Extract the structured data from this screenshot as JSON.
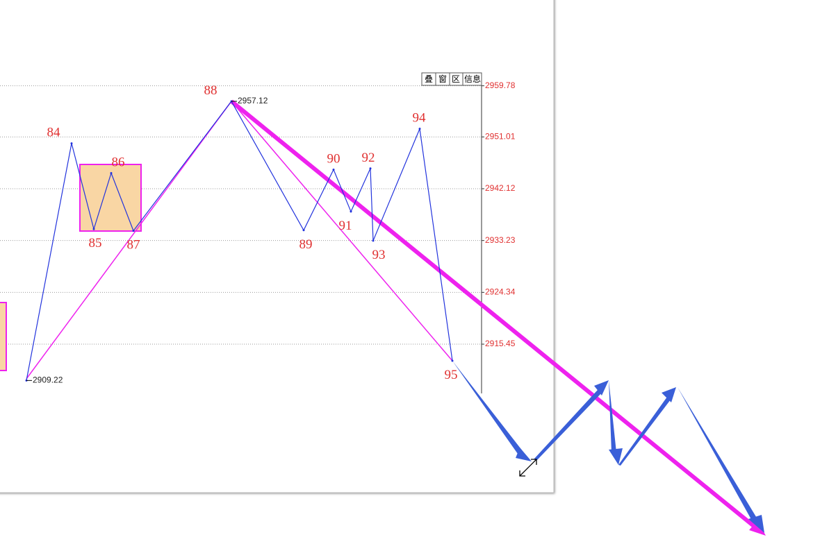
{
  "toolbar": [
    "叠",
    "窗",
    "区",
    "信息"
  ],
  "chart_data": {
    "type": "line",
    "categories": [
      null,
      "84",
      "85",
      "86",
      "87",
      "88",
      "89",
      "90",
      "91",
      "92",
      "93",
      "94",
      "95"
    ],
    "series": [
      {
        "color": "#2233dd",
        "values": [
          2909.22,
          2949.9,
          2935.2,
          2944.8,
          2934.9,
          2957.12,
          2935.0,
          2945.4,
          2938.2,
          2945.6,
          2933.2,
          2952.4,
          2912.6
        ],
        "value_labels": [
          "2909.22",
          null,
          null,
          null,
          null,
          "2957.12",
          null,
          null,
          null,
          null,
          null,
          null,
          null
        ]
      }
    ],
    "ylim": [
      2907,
      2962
    ],
    "yticks": [
      2959.78,
      2951.01,
      2942.12,
      2933.23,
      2924.34,
      2915.45
    ],
    "grid": true
  }
}
